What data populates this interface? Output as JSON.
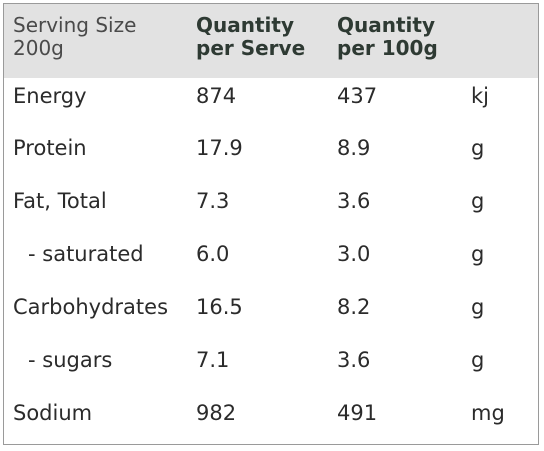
{
  "header": {
    "serving_size_line1": "Serving Size",
    "serving_size_line2": "200g",
    "per_serve_line1": "Quantity",
    "per_serve_line2": "per Serve",
    "per_100g_line1": "Quantity",
    "per_100g_line2": "per 100g"
  },
  "rows": [
    {
      "name": "Energy",
      "per_serve": "874",
      "per_100g": "437",
      "unit": "kj"
    },
    {
      "name": "Protein",
      "per_serve": "17.9",
      "per_100g": "8.9",
      "unit": "g"
    },
    {
      "name": "Fat, Total",
      "per_serve": "7.3",
      "per_100g": "3.6",
      "unit": "g"
    },
    {
      "name": "- saturated",
      "per_serve": "6.0",
      "per_100g": "3.0",
      "unit": "g"
    },
    {
      "name": "Carbohydrates",
      "per_serve": "16.5",
      "per_100g": "8.2",
      "unit": "g"
    },
    {
      "name": "- sugars",
      "per_serve": "7.1",
      "per_100g": "3.6",
      "unit": "g"
    },
    {
      "name": "Sodium",
      "per_serve": "982",
      "per_100g": "491",
      "unit": "mg"
    }
  ]
}
